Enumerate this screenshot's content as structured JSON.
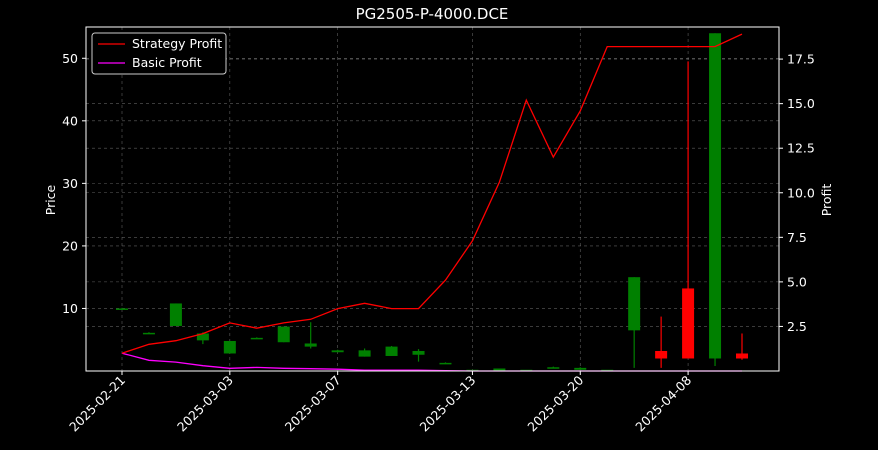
{
  "chart_data": {
    "type": "candlestick",
    "title": "PG2505-P-4000.DCE",
    "ylabel": "Price",
    "y2label": "Profit",
    "legend": {
      "position": "top-left",
      "entries": [
        "Strategy Profit",
        "Basic Profit"
      ]
    },
    "grid": true,
    "ylim": [
      0,
      55
    ],
    "y2lim": [
      0,
      19.3
    ],
    "yticks": [
      "10",
      "20",
      "30",
      "40",
      "50"
    ],
    "y2ticks": [
      "2.5",
      "5.0",
      "7.5",
      "10.0",
      "12.5",
      "15.0",
      "17.5"
    ],
    "xticks": [
      "2025-02-21",
      "2025-03-03",
      "2025-03-07",
      "2025-03-13",
      "2025-03-20",
      "2025-04-08"
    ],
    "colors": {
      "up": "#008000",
      "down": "#ff0000",
      "strategy": "#ff0000",
      "basic": "#ff00ff",
      "background": "#000000",
      "grid": "#888888"
    },
    "candles": [
      {
        "o": 10.0,
        "h": 10.1,
        "l": 10.0,
        "c": 10.0
      },
      {
        "o": 6.1,
        "h": 6.2,
        "l": 6.0,
        "c": 6.1
      },
      {
        "o": 7.2,
        "h": 10.8,
        "l": 7.2,
        "c": 10.8
      },
      {
        "o": 4.9,
        "h": 6.2,
        "l": 4.3,
        "c": 6.0
      },
      {
        "o": 2.8,
        "h": 4.8,
        "l": 2.8,
        "c": 4.8
      },
      {
        "o": 5.3,
        "h": 5.4,
        "l": 5.3,
        "c": 5.3
      },
      {
        "o": 4.6,
        "h": 7.1,
        "l": 4.6,
        "c": 7.1
      },
      {
        "o": 3.9,
        "h": 7.8,
        "l": 3.6,
        "c": 4.4
      },
      {
        "o": 3.0,
        "h": 3.4,
        "l": 3.0,
        "c": 3.3
      },
      {
        "o": 2.3,
        "h": 3.6,
        "l": 2.3,
        "c": 3.3
      },
      {
        "o": 2.4,
        "h": 4.0,
        "l": 2.4,
        "c": 3.9
      },
      {
        "o": 2.6,
        "h": 3.5,
        "l": 1.5,
        "c": 3.2
      },
      {
        "o": 1.3,
        "h": 1.4,
        "l": 1.3,
        "c": 1.3
      },
      {
        "o": 0.2,
        "h": 0.2,
        "l": 0.2,
        "c": 0.2
      },
      {
        "o": 0.0,
        "h": 0.4,
        "l": 0.0,
        "c": 0.4
      },
      {
        "o": 0.2,
        "h": 0.2,
        "l": 0.2,
        "c": 0.2
      },
      {
        "o": 0.4,
        "h": 0.7,
        "l": 0.4,
        "c": 0.6
      },
      {
        "o": 0.2,
        "h": 0.6,
        "l": 0.2,
        "c": 0.5
      },
      {
        "o": 0.2,
        "h": 0.2,
        "l": 0.2,
        "c": 0.2
      },
      {
        "o": 6.5,
        "h": 15.0,
        "l": 0.5,
        "c": 15.0
      },
      {
        "o": 3.2,
        "h": 8.7,
        "l": 0.5,
        "c": 2.0
      },
      {
        "o": 13.2,
        "h": 49.5,
        "l": 2.0,
        "c": 2.0
      },
      {
        "o": 2.0,
        "h": 54.0,
        "l": 0.8,
        "c": 54.0
      },
      {
        "o": 2.8,
        "h": 6.0,
        "l": 1.8,
        "c": 2.0
      }
    ],
    "strategy_profit": [
      1.0,
      1.5,
      1.7,
      2.1,
      2.7,
      2.4,
      2.7,
      2.9,
      3.5,
      3.8,
      3.5,
      3.5,
      5.1,
      7.3,
      10.6,
      15.2,
      12.0,
      14.6,
      18.2,
      18.2,
      18.2,
      18.2,
      18.2,
      18.9
    ],
    "basic_profit": [
      1.0,
      0.6,
      0.5,
      0.3,
      0.15,
      0.2,
      0.15,
      0.13,
      0.1,
      0.05,
      0.05,
      0.05,
      0.02,
      0.0,
      0.0,
      0.0,
      0.0,
      0.0,
      0.0,
      0.0,
      0.0,
      0.0,
      0.0,
      0.0
    ]
  }
}
